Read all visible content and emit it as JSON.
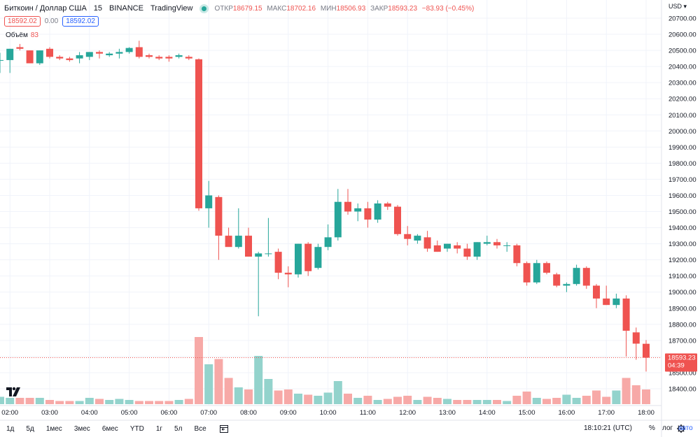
{
  "header": {
    "title": "Биткоин / Доллар США",
    "interval": "15",
    "exchange": "BINANCE",
    "source": "TradingView",
    "ohlc": {
      "open_label": "ОТКР",
      "open": "18679.15",
      "high_label": "МАКС",
      "high": "18702.16",
      "low_label": "МИН",
      "low": "18506.93",
      "close_label": "ЗАКР",
      "close": "18593.23",
      "change": "−83.93 (−0.45%)"
    },
    "sell_price": "18592.02",
    "spread": "0.00",
    "buy_price": "18592.02"
  },
  "volume_legend": {
    "label": "Объём",
    "value": "83"
  },
  "currency": "USD",
  "bottom_bar": {
    "ranges": [
      "1д",
      "5д",
      "1мес",
      "3мес",
      "6мес",
      "YTD",
      "1г",
      "5л",
      "Все"
    ],
    "clock": "18:10:21 (UTC)",
    "percent": "%",
    "log": "лог",
    "auto": "авто"
  },
  "colors": {
    "up": "#26a69a",
    "down": "#ef5350",
    "up_volume": "#93d3cc",
    "down_volume": "#f7a9a7"
  },
  "chart_data": {
    "type": "candlestick",
    "interval_minutes": 15,
    "y_axis_ticks": [
      "20700.00",
      "20600.00",
      "20500.00",
      "20400.00",
      "20300.00",
      "20200.00",
      "20100.00",
      "20000.00",
      "19900.00",
      "19800.00",
      "19700.00",
      "19600.00",
      "19500.00",
      "19400.00",
      "19300.00",
      "19200.00",
      "19100.00",
      "19000.00",
      "18900.00",
      "18800.00",
      "18700.00",
      "18600.00",
      "18500.00",
      "18400.00"
    ],
    "x_axis_ticks": [
      "02:00",
      "03:00",
      "04:00",
      "05:00",
      "06:00",
      "07:00",
      "08:00",
      "09:00",
      "10:00",
      "11:00",
      "12:00",
      "13:00",
      "14:00",
      "15:00",
      "16:00",
      "17:00",
      "18:00"
    ],
    "ylim": [
      18365,
      20745
    ],
    "last_price": "18593.23",
    "countdown": "04:39",
    "volume_scale": 100,
    "candles": [
      {
        "t": "01:45",
        "o": 20440,
        "h": 20485,
        "l": 20360,
        "c": 20440,
        "v": 7
      },
      {
        "t": "02:00",
        "o": 20440,
        "h": 20510,
        "l": 20360,
        "c": 20510,
        "v": 6
      },
      {
        "t": "02:15",
        "o": 20520,
        "h": 20540,
        "l": 20500,
        "c": 20510,
        "v": 6
      },
      {
        "t": "02:30",
        "o": 20500,
        "h": 20500,
        "l": 20420,
        "c": 20420,
        "v": 6
      },
      {
        "t": "02:45",
        "o": 20420,
        "h": 20500,
        "l": 20410,
        "c": 20500,
        "v": 6
      },
      {
        "t": "03:00",
        "o": 20510,
        "h": 20520,
        "l": 20450,
        "c": 20460,
        "v": 4
      },
      {
        "t": "03:15",
        "o": 20460,
        "h": 20470,
        "l": 20440,
        "c": 20450,
        "v": 3
      },
      {
        "t": "03:30",
        "o": 20450,
        "h": 20460,
        "l": 20430,
        "c": 20440,
        "v": 3
      },
      {
        "t": "03:45",
        "o": 20450,
        "h": 20490,
        "l": 20420,
        "c": 20470,
        "v": 3
      },
      {
        "t": "04:00",
        "o": 20460,
        "h": 20490,
        "l": 20440,
        "c": 20490,
        "v": 6
      },
      {
        "t": "04:15",
        "o": 20490,
        "h": 20500,
        "l": 20450,
        "c": 20480,
        "v": 5
      },
      {
        "t": "04:30",
        "o": 20470,
        "h": 20490,
        "l": 20460,
        "c": 20480,
        "v": 4
      },
      {
        "t": "04:45",
        "o": 20480,
        "h": 20510,
        "l": 20450,
        "c": 20490,
        "v": 5
      },
      {
        "t": "05:00",
        "o": 20490,
        "h": 20520,
        "l": 20480,
        "c": 20515,
        "v": 4
      },
      {
        "t": "05:15",
        "o": 20520,
        "h": 20560,
        "l": 20450,
        "c": 20460,
        "v": 3
      },
      {
        "t": "05:30",
        "o": 20470,
        "h": 20480,
        "l": 20450,
        "c": 20460,
        "v": 3
      },
      {
        "t": "05:45",
        "o": 20460,
        "h": 20470,
        "l": 20440,
        "c": 20450,
        "v": 3
      },
      {
        "t": "06:00",
        "o": 20460,
        "h": 20470,
        "l": 20430,
        "c": 20450,
        "v": 3
      },
      {
        "t": "06:15",
        "o": 20460,
        "h": 20480,
        "l": 20450,
        "c": 20470,
        "v": 4
      },
      {
        "t": "06:30",
        "o": 20460,
        "h": 20470,
        "l": 20440,
        "c": 20450,
        "v": 5
      },
      {
        "t": "06:45",
        "o": 20445,
        "h": 20450,
        "l": 19505,
        "c": 19520,
        "v": 64
      },
      {
        "t": "07:00",
        "o": 19520,
        "h": 19690,
        "l": 19400,
        "c": 19600,
        "v": 38
      },
      {
        "t": "07:15",
        "o": 19590,
        "h": 19600,
        "l": 19200,
        "c": 19350,
        "v": 43
      },
      {
        "t": "07:30",
        "o": 19350,
        "h": 19400,
        "l": 19300,
        "c": 19280,
        "v": 25
      },
      {
        "t": "07:45",
        "o": 19280,
        "h": 19520,
        "l": 19270,
        "c": 19350,
        "v": 16
      },
      {
        "t": "08:00",
        "o": 19350,
        "h": 19400,
        "l": 19220,
        "c": 19220,
        "v": 14
      },
      {
        "t": "08:15",
        "o": 19220,
        "h": 19250,
        "l": 18850,
        "c": 19240,
        "v": 46
      },
      {
        "t": "08:30",
        "o": 19240,
        "h": 19460,
        "l": 19220,
        "c": 19240,
        "v": 24
      },
      {
        "t": "08:45",
        "o": 19250,
        "h": 19270,
        "l": 19080,
        "c": 19120,
        "v": 13
      },
      {
        "t": "09:00",
        "o": 19120,
        "h": 19160,
        "l": 19030,
        "c": 19110,
        "v": 14
      },
      {
        "t": "09:15",
        "o": 19110,
        "h": 19300,
        "l": 19090,
        "c": 19300,
        "v": 10
      },
      {
        "t": "09:30",
        "o": 19300,
        "h": 19310,
        "l": 19100,
        "c": 19130,
        "v": 9
      },
      {
        "t": "09:45",
        "o": 19150,
        "h": 19300,
        "l": 19140,
        "c": 19280,
        "v": 8
      },
      {
        "t": "10:00",
        "o": 19280,
        "h": 19420,
        "l": 19260,
        "c": 19340,
        "v": 11
      },
      {
        "t": "10:15",
        "o": 19340,
        "h": 19640,
        "l": 19320,
        "c": 19560,
        "v": 22
      },
      {
        "t": "10:30",
        "o": 19560,
        "h": 19640,
        "l": 19480,
        "c": 19500,
        "v": 10
      },
      {
        "t": "10:45",
        "o": 19500,
        "h": 19550,
        "l": 19440,
        "c": 19520,
        "v": 6
      },
      {
        "t": "11:00",
        "o": 19520,
        "h": 19560,
        "l": 19400,
        "c": 19450,
        "v": 8
      },
      {
        "t": "11:15",
        "o": 19450,
        "h": 19570,
        "l": 19430,
        "c": 19550,
        "v": 4
      },
      {
        "t": "11:30",
        "o": 19550,
        "h": 19560,
        "l": 19510,
        "c": 19530,
        "v": 5
      },
      {
        "t": "11:45",
        "o": 19530,
        "h": 19540,
        "l": 19350,
        "c": 19360,
        "v": 7
      },
      {
        "t": "12:00",
        "o": 19360,
        "h": 19410,
        "l": 19290,
        "c": 19330,
        "v": 8
      },
      {
        "t": "12:15",
        "o": 19320,
        "h": 19360,
        "l": 19300,
        "c": 19350,
        "v": 4
      },
      {
        "t": "12:30",
        "o": 19340,
        "h": 19380,
        "l": 19250,
        "c": 19270,
        "v": 7
      },
      {
        "t": "12:45",
        "o": 19290,
        "h": 19320,
        "l": 19250,
        "c": 19250,
        "v": 6
      },
      {
        "t": "13:00",
        "o": 19270,
        "h": 19300,
        "l": 19250,
        "c": 19300,
        "v": 5
      },
      {
        "t": "13:15",
        "o": 19290,
        "h": 19310,
        "l": 19240,
        "c": 19270,
        "v": 4
      },
      {
        "t": "13:30",
        "o": 19270,
        "h": 19300,
        "l": 19200,
        "c": 19220,
        "v": 4
      },
      {
        "t": "13:45",
        "o": 19220,
        "h": 19310,
        "l": 19200,
        "c": 19310,
        "v": 4
      },
      {
        "t": "14:00",
        "o": 19300,
        "h": 19350,
        "l": 19290,
        "c": 19310,
        "v": 4
      },
      {
        "t": "14:15",
        "o": 19310,
        "h": 19330,
        "l": 19270,
        "c": 19290,
        "v": 4
      },
      {
        "t": "14:30",
        "o": 19290,
        "h": 19310,
        "l": 19250,
        "c": 19290,
        "v": 3
      },
      {
        "t": "14:45",
        "o": 19290,
        "h": 19300,
        "l": 19160,
        "c": 19180,
        "v": 8
      },
      {
        "t": "15:00",
        "o": 19180,
        "h": 19190,
        "l": 19040,
        "c": 19060,
        "v": 12
      },
      {
        "t": "15:15",
        "o": 19060,
        "h": 19200,
        "l": 19050,
        "c": 19180,
        "v": 6
      },
      {
        "t": "15:30",
        "o": 19180,
        "h": 19190,
        "l": 19110,
        "c": 19120,
        "v": 5
      },
      {
        "t": "15:45",
        "o": 19110,
        "h": 19120,
        "l": 19030,
        "c": 19040,
        "v": 6
      },
      {
        "t": "16:00",
        "o": 19040,
        "h": 19060,
        "l": 19000,
        "c": 19050,
        "v": 9
      },
      {
        "t": "16:15",
        "o": 19050,
        "h": 19170,
        "l": 19040,
        "c": 19150,
        "v": 6
      },
      {
        "t": "16:30",
        "o": 19150,
        "h": 19160,
        "l": 19020,
        "c": 19040,
        "v": 8
      },
      {
        "t": "16:45",
        "o": 19040,
        "h": 19050,
        "l": 18900,
        "c": 18960,
        "v": 13
      },
      {
        "t": "17:00",
        "o": 18960,
        "h": 19040,
        "l": 18920,
        "c": 18920,
        "v": 7
      },
      {
        "t": "17:15",
        "o": 18920,
        "h": 18990,
        "l": 18900,
        "c": 18960,
        "v": 13
      },
      {
        "t": "17:30",
        "o": 18960,
        "h": 18980,
        "l": 18600,
        "c": 18760,
        "v": 25
      },
      {
        "t": "17:45",
        "o": 18750,
        "h": 18780,
        "l": 18580,
        "c": 18680,
        "v": 18
      },
      {
        "t": "18:00",
        "o": 18679.15,
        "h": 18702.16,
        "l": 18506.93,
        "c": 18593.23,
        "v": 14
      }
    ]
  }
}
